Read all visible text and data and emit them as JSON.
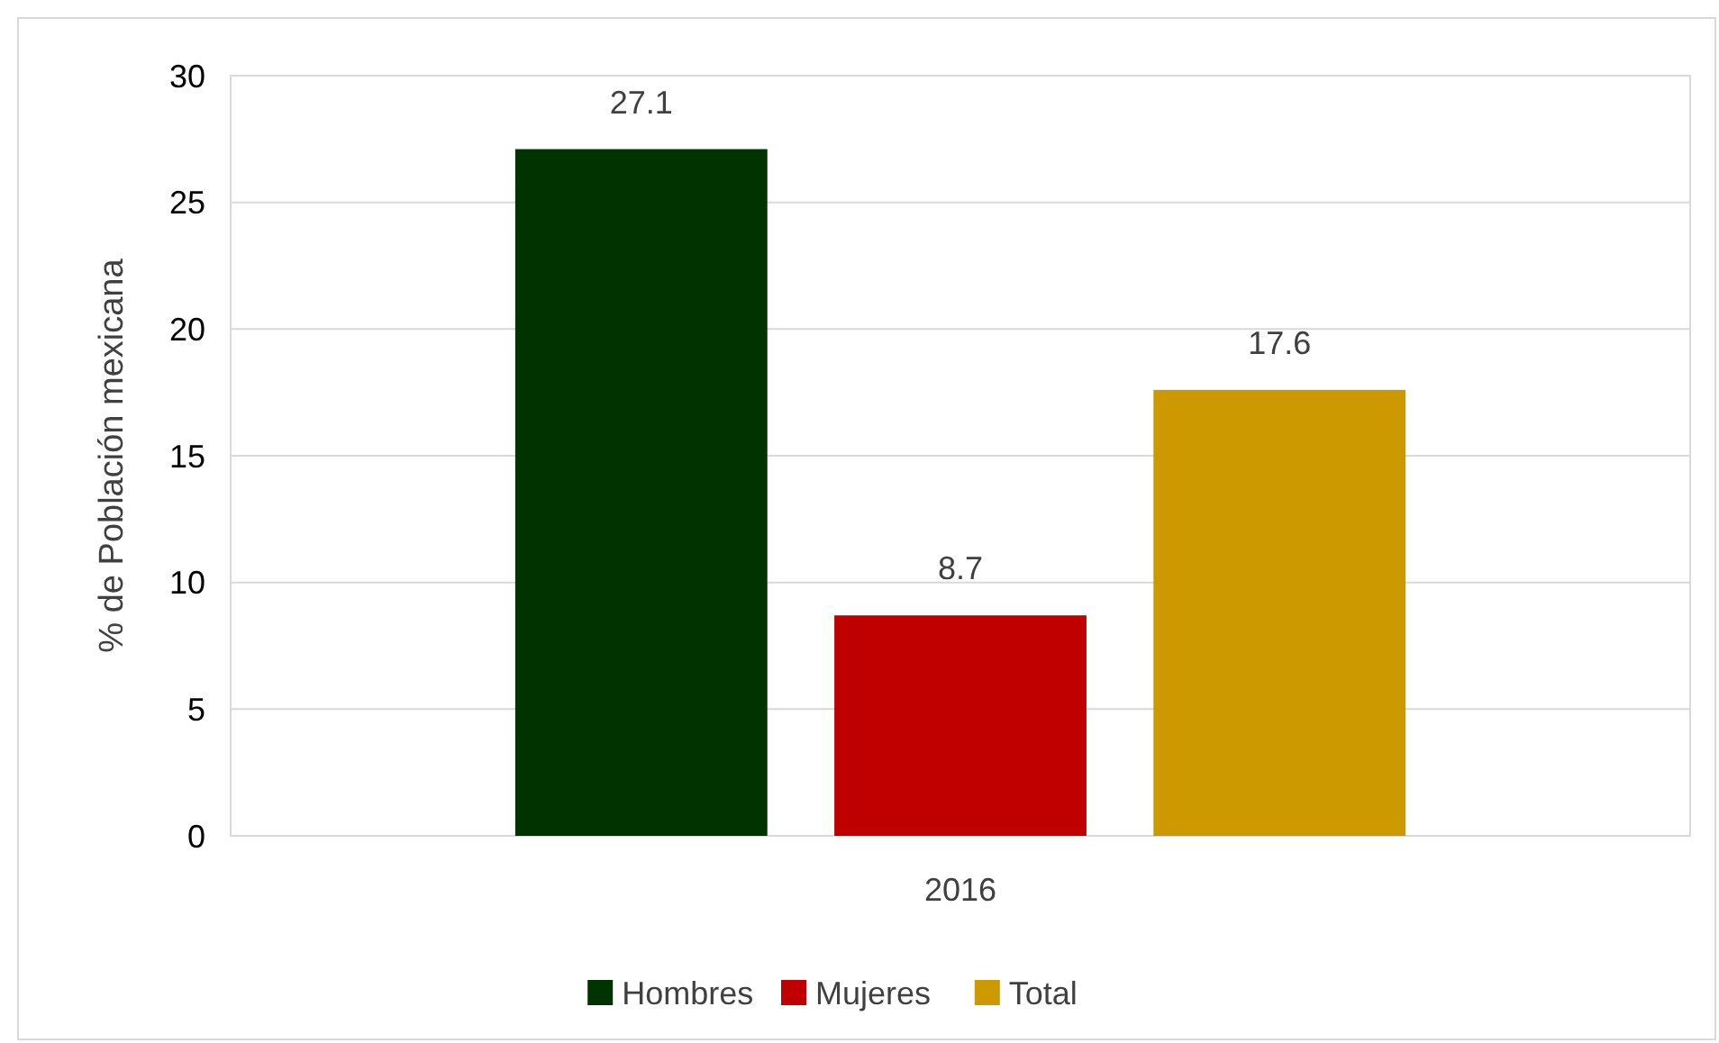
{
  "chart_data": {
    "type": "bar",
    "ylabel": "% de Población mexicana",
    "categories": [
      "2016"
    ],
    "series": [
      {
        "name": "Hombres",
        "color": "#003300",
        "values": [
          27.1
        ]
      },
      {
        "name": "Mujeres",
        "color": "#c00000",
        "values": [
          8.7
        ]
      },
      {
        "name": "Total",
        "color": "#cc9900",
        "values": [
          17.6
        ]
      }
    ],
    "ylim": [
      0,
      30
    ],
    "yticks": [
      0,
      5,
      10,
      15,
      20,
      25,
      30
    ],
    "grid": "y",
    "legend": "bottom",
    "data_labels": true
  }
}
